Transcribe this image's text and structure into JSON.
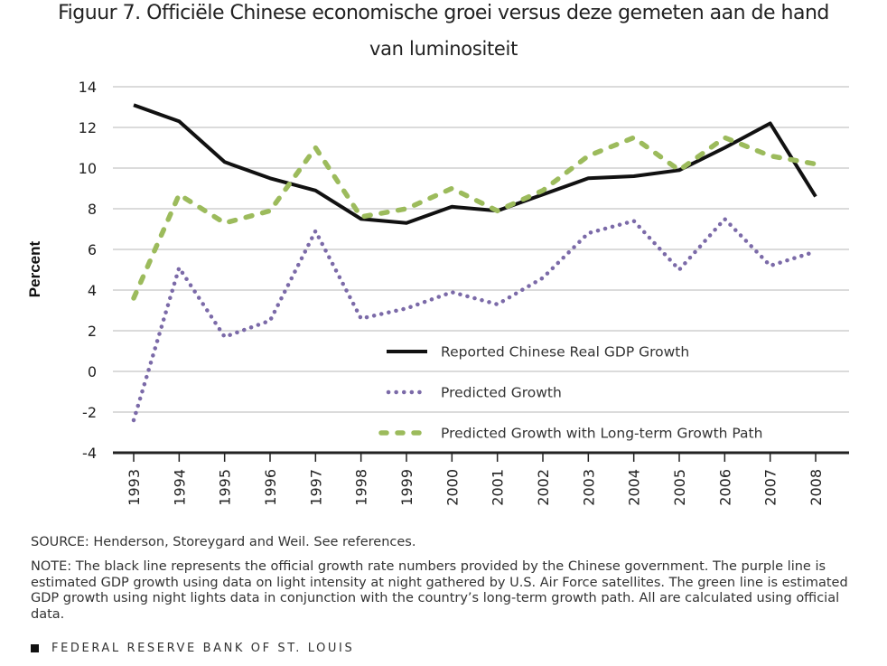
{
  "figure": {
    "title_line1": "Figuur 7. Officiële Chinese economische groei versus deze gemeten aan de hand",
    "title_line2": "van luminositeit",
    "source": "SOURCE: Henderson, Storeygard and Weil. See references.",
    "note": "NOTE: The black line represents the official growth rate numbers provided by the Chinese government. The purple line is estimated GDP growth using data on light intensity at night gathered by U.S. Air Force satellites. The green line is estimated GDP growth using night lights data in conjunction with the country’s long-term growth path. All are calculated using official data.",
    "footer": "FEDERAL RESERVE BANK OF ST. LOUIS"
  },
  "colors": {
    "reported": "#111111",
    "predicted": "#7b6aa8",
    "long_term": "#9cbb5c",
    "grid": "#cfcfcf",
    "axis": "#222222"
  },
  "chart_data": {
    "type": "line",
    "title": "Figuur 7. Officiële Chinese economische groei versus deze gemeten aan de hand van luminositeit",
    "xlabel": "",
    "ylabel": "Percent",
    "x": [
      "1993",
      "1994",
      "1995",
      "1996",
      "1997",
      "1998",
      "1999",
      "2000",
      "2001",
      "2002",
      "2003",
      "2004",
      "2005",
      "2006",
      "2007",
      "2008"
    ],
    "yticks": [
      "14",
      "12",
      "10",
      "8",
      "6",
      "4",
      "2",
      "0",
      "-2",
      "-4"
    ],
    "ylim": [
      -4,
      14
    ],
    "grid": true,
    "legend_position": "center-bottom",
    "series": [
      {
        "name": "Reported Chinese Real GDP Growth",
        "style": "solid",
        "values": [
          13.1,
          12.3,
          10.3,
          9.5,
          8.9,
          7.5,
          7.3,
          8.1,
          7.9,
          8.7,
          9.5,
          9.6,
          9.9,
          11.0,
          12.2,
          8.6
        ]
      },
      {
        "name": "Predicted Growth",
        "style": "dotted",
        "values": [
          -2.4,
          5.1,
          1.7,
          2.5,
          6.9,
          2.6,
          3.1,
          3.9,
          3.3,
          4.6,
          6.8,
          7.4,
          5.0,
          7.5,
          5.2,
          5.9
        ]
      },
      {
        "name": "Predicted Growth with Long-term Growth Path",
        "style": "dashed",
        "values": [
          3.6,
          8.7,
          7.3,
          7.9,
          11.0,
          7.6,
          8.0,
          9.0,
          7.9,
          8.9,
          10.6,
          11.5,
          9.9,
          11.5,
          10.6,
          10.2
        ]
      }
    ]
  }
}
